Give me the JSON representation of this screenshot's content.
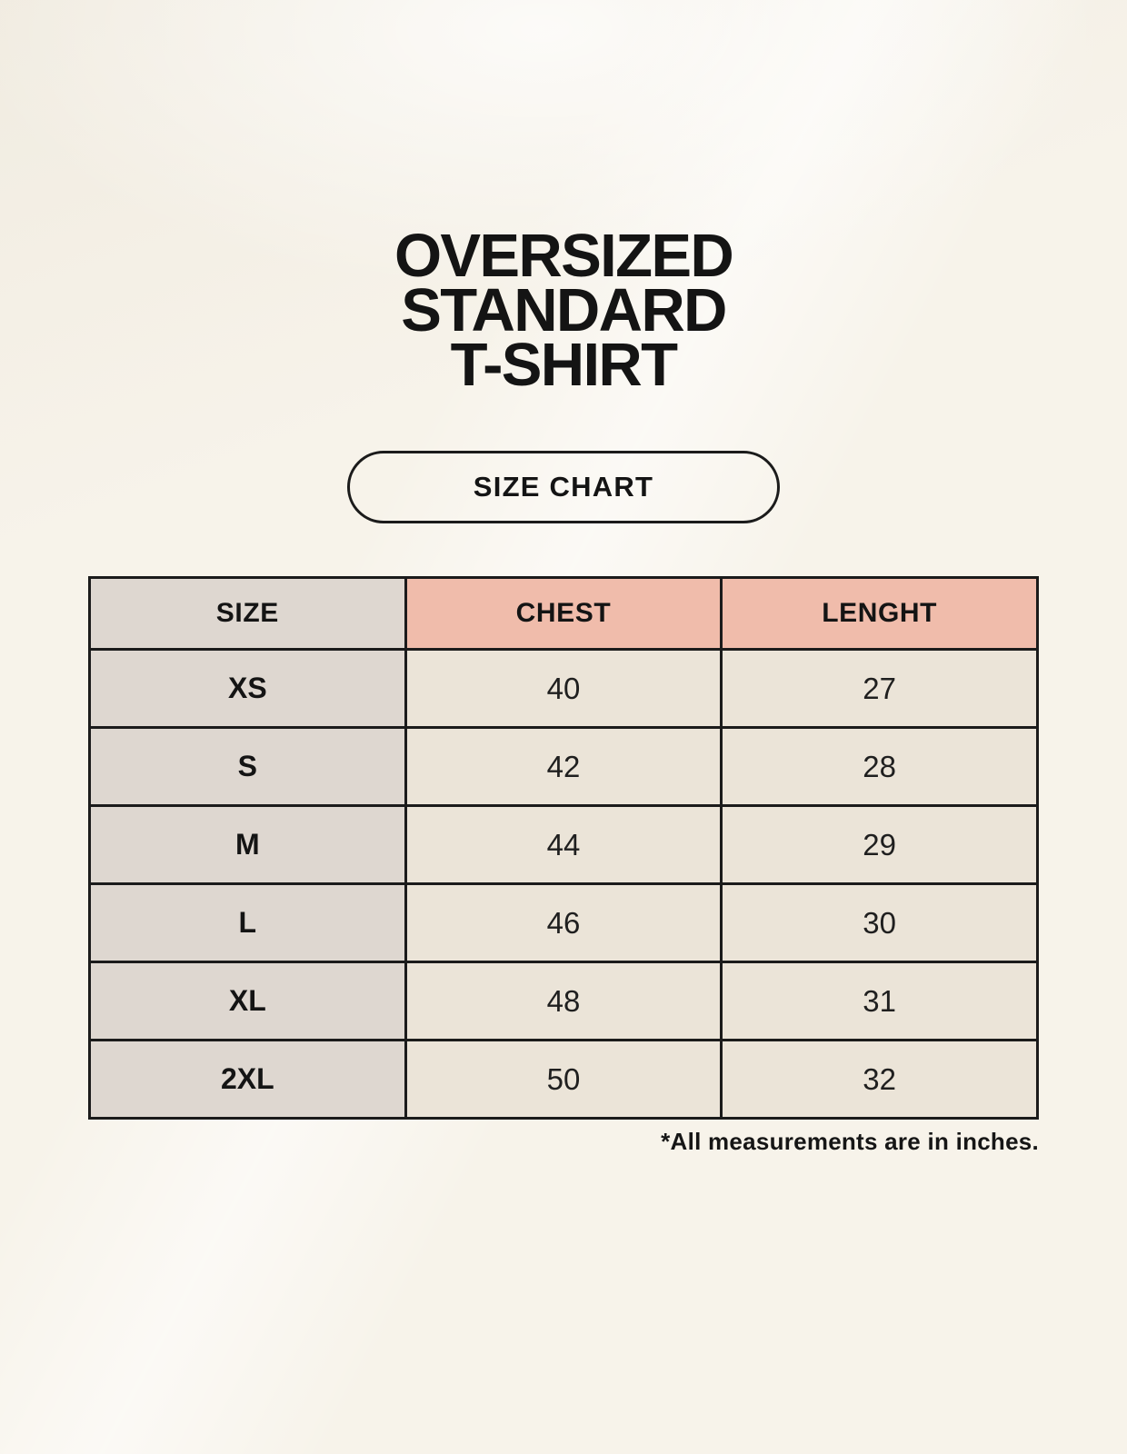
{
  "page": {
    "title_lines": [
      "OVERSIZED",
      "STANDARD",
      "T-SHIRT"
    ],
    "badge_label": "SIZE CHART",
    "footnote": "*All measurements are in inches."
  },
  "colors": {
    "background": "#f7f3ea",
    "size_column_bg": "#ded7d0",
    "measure_header_bg": "#f0bcab",
    "data_cell_bg": "#ebe4d8",
    "table_border": "#1b1b1b",
    "text": "#141414"
  },
  "chart_data": {
    "type": "table",
    "title": "OVERSIZED STANDARD T-SHIRT",
    "subtitle": "SIZE CHART",
    "columns": [
      "SIZE",
      "CHEST",
      "LENGHT"
    ],
    "rows": [
      [
        "XS",
        "40",
        "27"
      ],
      [
        "S",
        "42",
        "28"
      ],
      [
        "M",
        "44",
        "29"
      ],
      [
        "L",
        "46",
        "30"
      ],
      [
        "XL",
        "48",
        "31"
      ],
      [
        "2XL",
        "50",
        "32"
      ]
    ],
    "footnote": "*All measurements are in inches.",
    "units": "inches"
  }
}
